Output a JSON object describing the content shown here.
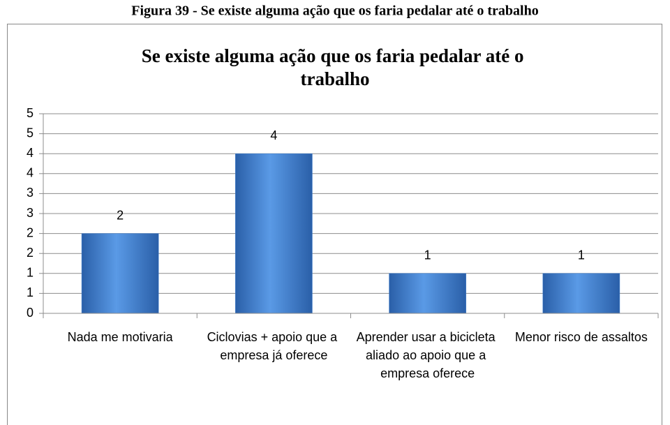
{
  "chart_data": {
    "type": "bar",
    "caption": "Figura 39 - Se existe alguma ação que os faria pedalar até o trabalho",
    "title": "Se existe alguma ação que os faria pedalar até o trabalho",
    "categories": [
      "Nada me motivaria",
      "Ciclovias + apoio que a empresa já oferece",
      "Aprender usar a bicicleta aliado ao apoio que a empresa oferece",
      "Menor risco de assaltos"
    ],
    "values": [
      2,
      4,
      1,
      1
    ],
    "color": "#3f7fd0",
    "ylim": [
      0,
      5
    ],
    "yticks": [
      0,
      {
        "value": 0.5,
        "label": "1"
      },
      1,
      {
        "value": 1.5,
        "label": "2"
      },
      2,
      {
        "value": 2.5,
        "label": "3"
      },
      3,
      {
        "value": 3.5,
        "label": "4"
      },
      4,
      {
        "value": 4.5,
        "label": "5"
      },
      5
    ],
    "grid": true
  }
}
